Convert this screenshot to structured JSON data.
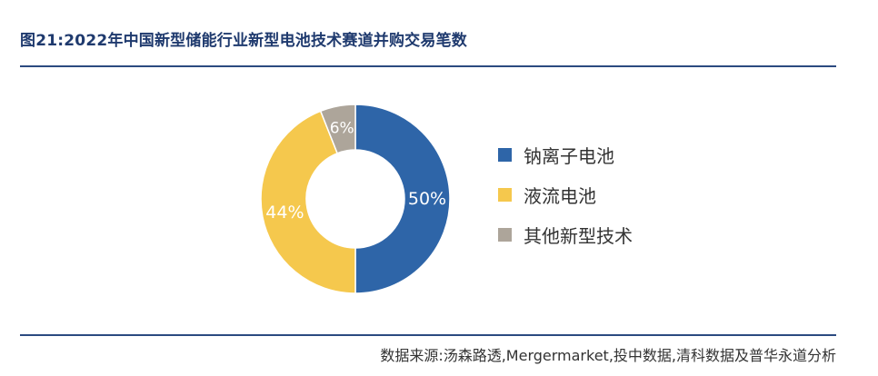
{
  "title": "图21:2022年中国新型储能行业新型电池技术赛道并购交易笔数",
  "source": "数据来源:汤森路透,Mergermarket,投中数据,清科数据及普华永道分析",
  "colors": {
    "rule": "#2b4a80",
    "title": "#1f3a6e"
  },
  "chart_data": {
    "type": "pie",
    "donut": true,
    "categories": [
      "钠离子电池",
      "液流电池",
      "其他新型技术"
    ],
    "values": [
      50,
      44,
      6
    ],
    "labels": [
      "50%",
      "44%",
      "6%"
    ],
    "colors": [
      "#2e65a8",
      "#f5c84d",
      "#ada59a"
    ],
    "legend_position": "right"
  }
}
